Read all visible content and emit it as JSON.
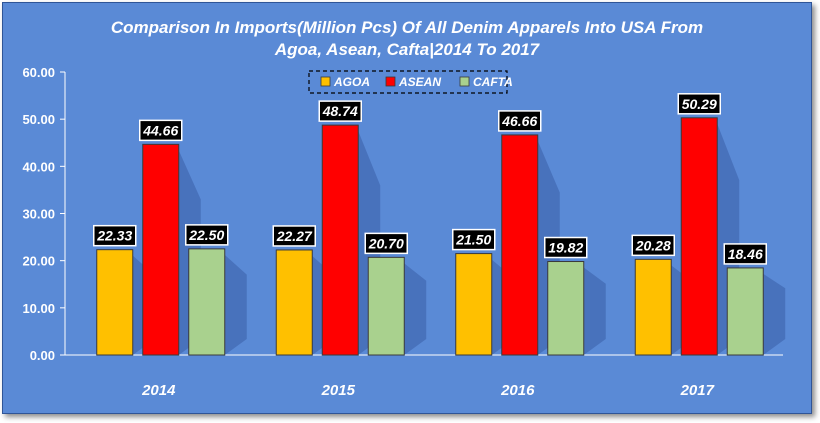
{
  "chart_data": {
    "type": "bar",
    "title": "Comparison In Imports(Million Pcs) Of All Denim Apparels Into USA From Agoa, Asean, Cafta|2014 To 2017",
    "title_lines": [
      "Comparison In Imports(Million Pcs) Of All Denim Apparels Into USA From",
      "Agoa, Asean, Cafta|2014 To 2017"
    ],
    "categories": [
      "2014",
      "2015",
      "2016",
      "2017"
    ],
    "series": [
      {
        "name": "AGOA",
        "color": "#ffc000",
        "values": [
          22.33,
          22.27,
          21.5,
          20.28
        ]
      },
      {
        "name": "ASEAN",
        "color": "#ff0000",
        "values": [
          44.66,
          48.74,
          46.66,
          50.29
        ]
      },
      {
        "name": "CAFTA",
        "color": "#a9d18e",
        "values": [
          22.5,
          20.7,
          19.82,
          18.46
        ]
      }
    ],
    "ylim": [
      0,
      60
    ],
    "yticks": [
      "0.00",
      "10.00",
      "20.00",
      "30.00",
      "40.00",
      "50.00",
      "60.00"
    ],
    "legend_position": "top-center",
    "grid": false,
    "data_labels": true
  },
  "colors": {
    "background": "#5a8ad6",
    "label_box": "#000000",
    "text": "#ffffff"
  }
}
